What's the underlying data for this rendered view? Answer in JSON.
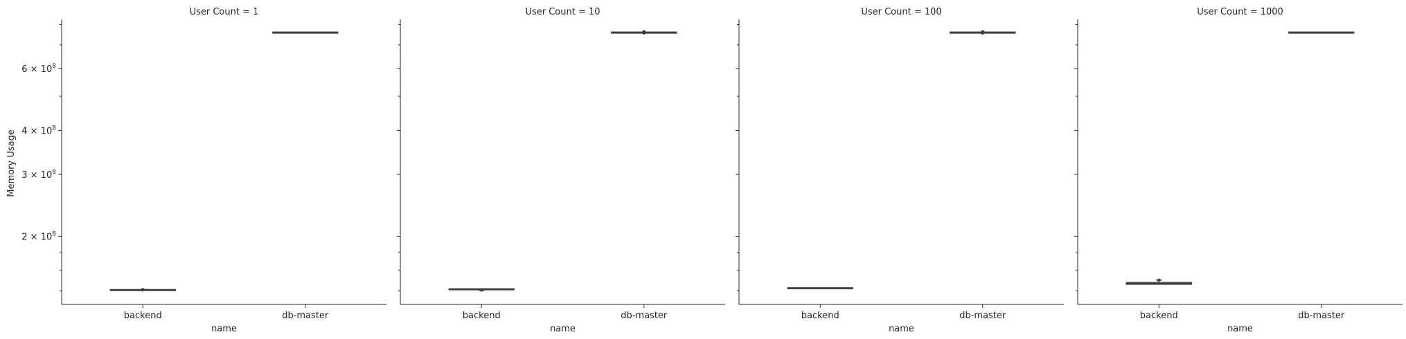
{
  "chart_data": {
    "type": "box",
    "facet_label": "User Count",
    "ylabel": "Memory Usage",
    "xlabel": "name",
    "y_scale": "log",
    "ylim": [
      128000000,
      820000000
    ],
    "y_major_ticks": [
      {
        "value": 200000000,
        "mantissa": "2",
        "exp": "8"
      },
      {
        "value": 300000000,
        "mantissa": "3",
        "exp": "8"
      },
      {
        "value": 400000000,
        "mantissa": "4",
        "exp": "8"
      },
      {
        "value": 600000000,
        "mantissa": "6",
        "exp": "8"
      }
    ],
    "y_minor_ticks": [
      140000000,
      160000000,
      180000000,
      500000000,
      700000000,
      800000000
    ],
    "categories": [
      "backend",
      "db-master"
    ],
    "box_color": "#555555",
    "panels": [
      {
        "title": "User Count = 1",
        "boxes": [
          {
            "category": "backend",
            "q1": 140500000,
            "median": 140800000,
            "q3": 141100000,
            "whisker_low": 140300000,
            "whisker_high": 141300000,
            "outliers": [
              140200000,
              141700000
            ]
          },
          {
            "category": "db-master",
            "q1": 760000000,
            "median": 760500000,
            "q3": 761000000,
            "whisker_low": 759500000,
            "whisker_high": 761500000,
            "outliers": []
          }
        ]
      },
      {
        "title": "User Count = 10",
        "boxes": [
          {
            "category": "backend",
            "q1": 141000000,
            "median": 141400000,
            "q3": 141800000,
            "whisker_low": 140800000,
            "whisker_high": 142000000,
            "outliers": [
              140100000,
              140700000
            ]
          },
          {
            "category": "db-master",
            "q1": 760000000,
            "median": 760500000,
            "q3": 761000000,
            "whisker_low": 759500000,
            "whisker_high": 761500000,
            "outliers": [
              753000000,
              767000000
            ]
          }
        ]
      },
      {
        "title": "User Count = 100",
        "boxes": [
          {
            "category": "backend",
            "q1": 141800000,
            "median": 142300000,
            "q3": 142800000,
            "whisker_low": 141500000,
            "whisker_high": 143000000,
            "outliers": []
          },
          {
            "category": "db-master",
            "q1": 760000000,
            "median": 760500000,
            "q3": 761000000,
            "whisker_low": 759500000,
            "whisker_high": 761500000,
            "outliers": [
              753000000,
              767000000
            ]
          }
        ]
      },
      {
        "title": "User Count = 1000",
        "boxes": [
          {
            "category": "backend",
            "q1": 146000000,
            "median": 147000000,
            "q3": 147800000,
            "whisker_low": 145800000,
            "whisker_high": 148800000,
            "outliers": [
              149700000,
              150500000
            ]
          },
          {
            "category": "db-master",
            "q1": 760000000,
            "median": 760500000,
            "q3": 761000000,
            "whisker_low": 759500000,
            "whisker_high": 761500000,
            "outliers": []
          }
        ]
      }
    ]
  }
}
